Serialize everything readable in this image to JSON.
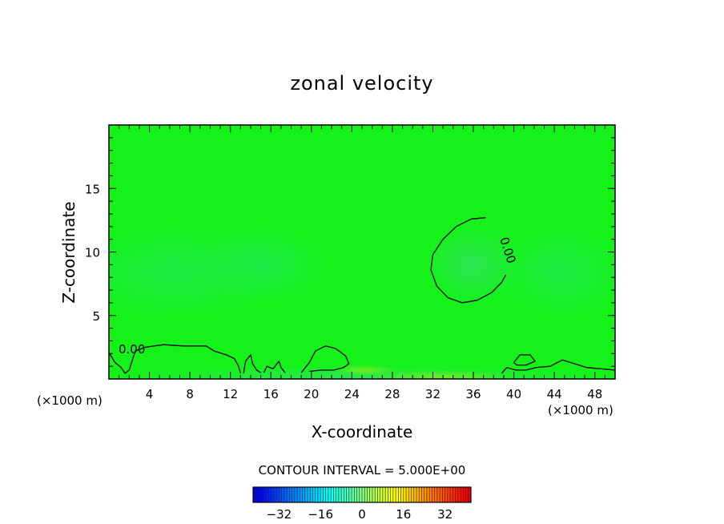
{
  "chart_data": {
    "type": "heatmap",
    "title": "zonal velocity",
    "xlabel": "X-coordinate",
    "ylabel": "Z-coordinate",
    "x_unit_left": "(×1000 m)",
    "x_unit_right": "(×1000 m)",
    "xlim": [
      0,
      50
    ],
    "ylim": [
      0,
      20
    ],
    "xticks": [
      4,
      8,
      12,
      16,
      20,
      24,
      28,
      32,
      36,
      40,
      44,
      48
    ],
    "yticks": [
      5,
      10,
      15
    ],
    "contour_interval_text": "CONTOUR INTERVAL = 5.000E+00",
    "contour_level_label": "0.00",
    "colorbar": {
      "range": [
        -42,
        42
      ],
      "ticks": [
        -32,
        -16,
        0,
        16,
        32
      ]
    },
    "zero_contours": [
      [
        [
          37.2,
          12.7
        ],
        [
          35.8,
          12.6
        ],
        [
          34.3,
          12.0
        ],
        [
          33.0,
          11.0
        ],
        [
          32.0,
          9.8
        ],
        [
          31.8,
          8.6
        ],
        [
          32.4,
          7.3
        ],
        [
          33.5,
          6.4
        ],
        [
          34.9,
          6.0
        ],
        [
          36.4,
          6.2
        ],
        [
          37.8,
          6.8
        ],
        [
          38.8,
          7.6
        ],
        [
          39.2,
          8.2
        ]
      ],
      [
        [
          0.0,
          2.1
        ],
        [
          0.6,
          1.3
        ],
        [
          1.2,
          0.9
        ],
        [
          1.6,
          0.45
        ],
        [
          2.0,
          0.7
        ],
        [
          2.6,
          2.2
        ],
        [
          3.6,
          2.5
        ],
        [
          5.4,
          2.7
        ],
        [
          7.4,
          2.6
        ],
        [
          9.6,
          2.6
        ],
        [
          10.4,
          2.2
        ],
        [
          11.6,
          1.9
        ],
        [
          12.4,
          1.6
        ],
        [
          12.8,
          1.0
        ],
        [
          13.0,
          0.45
        ]
      ],
      [
        [
          13.3,
          0.45
        ],
        [
          13.5,
          1.4
        ],
        [
          14.0,
          1.9
        ],
        [
          14.2,
          1.2
        ],
        [
          14.6,
          0.7
        ],
        [
          15.0,
          0.5
        ]
      ],
      [
        [
          15.3,
          0.5
        ],
        [
          15.6,
          1.0
        ],
        [
          16.2,
          0.8
        ],
        [
          16.8,
          1.4
        ],
        [
          17.0,
          0.9
        ],
        [
          17.4,
          0.5
        ]
      ],
      [
        [
          19.0,
          0.5
        ],
        [
          19.8,
          1.3
        ],
        [
          20.4,
          2.2
        ],
        [
          21.4,
          2.6
        ],
        [
          22.4,
          2.4
        ],
        [
          23.4,
          1.8
        ],
        [
          23.7,
          1.2
        ],
        [
          23.2,
          0.9
        ],
        [
          22.2,
          0.7
        ],
        [
          21.0,
          0.7
        ],
        [
          19.8,
          0.6
        ]
      ],
      [
        [
          38.8,
          0.45
        ],
        [
          39.3,
          0.9
        ],
        [
          40.2,
          0.7
        ],
        [
          41.2,
          0.7
        ],
        [
          42.2,
          0.9
        ],
        [
          43.6,
          1.0
        ],
        [
          44.8,
          1.5
        ],
        [
          46.0,
          1.2
        ],
        [
          47.2,
          0.9
        ],
        [
          48.6,
          0.8
        ],
        [
          50.0,
          0.7
        ]
      ],
      [
        [
          40.0,
          1.3
        ],
        [
          40.6,
          1.9
        ],
        [
          41.6,
          1.9
        ],
        [
          42.1,
          1.4
        ],
        [
          41.2,
          1.1
        ],
        [
          40.3,
          1.1
        ],
        [
          40.0,
          1.3
        ]
      ]
    ]
  }
}
